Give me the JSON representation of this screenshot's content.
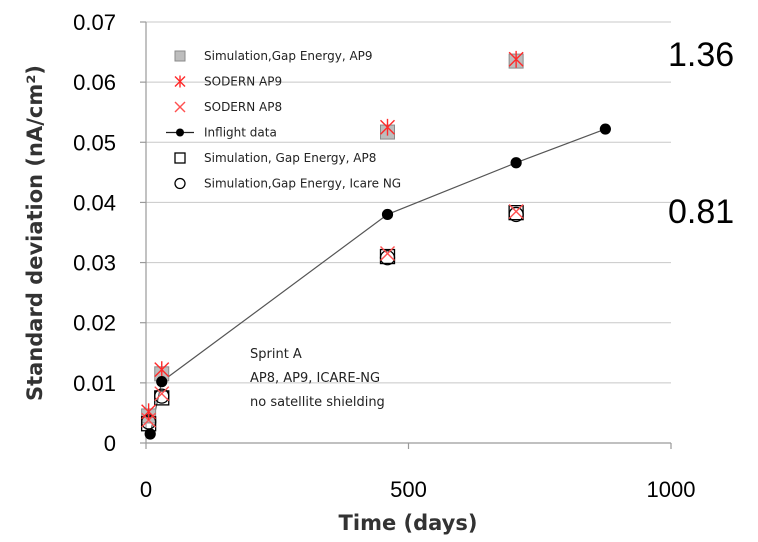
{
  "chart_data": {
    "type": "scatter",
    "xlabel": "Time (days)",
    "ylabel": "Standard deviation (nA/cm²)",
    "xlim": [
      0,
      1000
    ],
    "ylim": [
      0,
      0.07
    ],
    "x_ticks": [
      "0",
      "500",
      "1000"
    ],
    "y_ticks": [
      "0",
      "0.01",
      "0.02",
      "0.03",
      "0.04",
      "0.05",
      "0.06",
      "0.07"
    ],
    "grid": "horizontal",
    "legend_position": "top-left",
    "series": [
      {
        "name": "Simulation,Gap Energy, AP9",
        "marker": "gray-square",
        "color": "#9e9e9e",
        "x": [
          5,
          30,
          460,
          705
        ],
        "y": [
          0.0045,
          0.0115,
          0.0517,
          0.0635
        ]
      },
      {
        "name": "SODERN AP9",
        "marker": "asterisk",
        "color": "#ff2a2a",
        "x": [
          5,
          30,
          460,
          705
        ],
        "y": [
          0.0052,
          0.0122,
          0.0525,
          0.0638
        ]
      },
      {
        "name": "SODERN AP8",
        "marker": "x",
        "color": "#ff5050",
        "x": [
          5,
          30,
          460,
          705
        ],
        "y": [
          0.0038,
          0.0082,
          0.0315,
          0.0385
        ]
      },
      {
        "name": "Inflight data",
        "marker": "filled-circle-line",
        "color": "#000000",
        "x": [
          8,
          30,
          460,
          705,
          875
        ],
        "y": [
          0.0015,
          0.0102,
          0.038,
          0.0466,
          0.0522
        ]
      },
      {
        "name": "Simulation, Gap Energy, AP8",
        "marker": "open-square",
        "color": "#000000",
        "x": [
          5,
          30,
          460,
          705
        ],
        "y": [
          0.0032,
          0.0075,
          0.031,
          0.0383
        ]
      },
      {
        "name": "Simulation,Gap Energy, Icare NG",
        "marker": "open-circle",
        "color": "#000000",
        "x": [
          5,
          30,
          460,
          705
        ],
        "y": [
          0.0035,
          0.0078,
          0.0308,
          0.038
        ]
      }
    ],
    "annotations": {
      "note_lines": [
        "Sprint A",
        "AP8, AP9, ICARE-NG",
        "no satellite shielding"
      ],
      "side_labels": [
        "1.36",
        "0.81"
      ]
    }
  }
}
